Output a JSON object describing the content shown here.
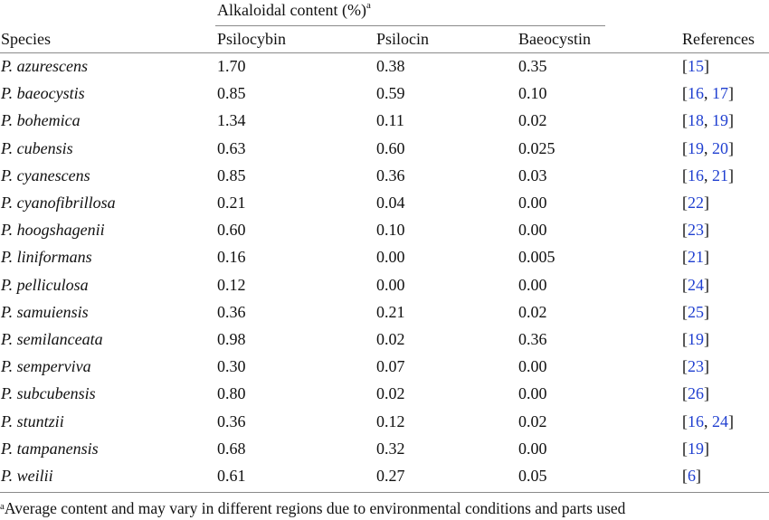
{
  "table": {
    "group_header": "Alkaloidal content (%)",
    "group_header_mark": "a",
    "columns": {
      "species": "Species",
      "psilocybin": "Psilocybin",
      "psilocin": "Psilocin",
      "baeocystin": "Baeocystin",
      "references": "References"
    },
    "rows": [
      {
        "species": "P. azurescens",
        "psilocybin": "1.70",
        "psilocin": "0.38",
        "baeocystin": "0.35",
        "refs": [
          "15"
        ]
      },
      {
        "species": "P. baeocystis",
        "psilocybin": "0.85",
        "psilocin": "0.59",
        "baeocystin": "0.10",
        "refs": [
          "16",
          "17"
        ]
      },
      {
        "species": "P. bohemica",
        "psilocybin": "1.34",
        "psilocin": "0.11",
        "baeocystin": "0.02",
        "refs": [
          "18",
          "19"
        ]
      },
      {
        "species": "P. cubensis",
        "psilocybin": "0.63",
        "psilocin": "0.60",
        "baeocystin": "0.025",
        "refs": [
          "19",
          "20"
        ]
      },
      {
        "species": "P. cyanescens",
        "psilocybin": "0.85",
        "psilocin": "0.36",
        "baeocystin": "0.03",
        "refs": [
          "16",
          "21"
        ]
      },
      {
        "species": "P. cyanofibrillosa",
        "psilocybin": "0.21",
        "psilocin": "0.04",
        "baeocystin": "0.00",
        "refs": [
          "22"
        ]
      },
      {
        "species": "P. hoogshagenii",
        "psilocybin": "0.60",
        "psilocin": "0.10",
        "baeocystin": "0.00",
        "refs": [
          "23"
        ]
      },
      {
        "species": "P. liniformans",
        "psilocybin": "0.16",
        "psilocin": "0.00",
        "baeocystin": "0.005",
        "refs": [
          "21"
        ]
      },
      {
        "species": "P. pelliculosa",
        "psilocybin": "0.12",
        "psilocin": "0.00",
        "baeocystin": "0.00",
        "refs": [
          "24"
        ]
      },
      {
        "species": "P. samuiensis",
        "psilocybin": "0.36",
        "psilocin": "0.21",
        "baeocystin": "0.02",
        "refs": [
          "25"
        ]
      },
      {
        "species": "P. semilanceata",
        "psilocybin": "0.98",
        "psilocin": "0.02",
        "baeocystin": "0.36",
        "refs": [
          "19"
        ]
      },
      {
        "species": "P. semperviva",
        "psilocybin": "0.30",
        "psilocin": "0.07",
        "baeocystin": "0.00",
        "refs": [
          "23"
        ]
      },
      {
        "species": "P. subcubensis",
        "psilocybin": "0.80",
        "psilocin": "0.02",
        "baeocystin": "0.00",
        "refs": [
          "26"
        ]
      },
      {
        "species": "P. stuntzii",
        "psilocybin": "0.36",
        "psilocin": "0.12",
        "baeocystin": "0.02",
        "refs": [
          "16",
          "24"
        ]
      },
      {
        "species": "P. tampanensis",
        "psilocybin": "0.68",
        "psilocin": "0.32",
        "baeocystin": "0.00",
        "refs": [
          "19"
        ]
      },
      {
        "species": "P. weilii",
        "psilocybin": "0.61",
        "psilocin": "0.27",
        "baeocystin": "0.05",
        "refs": [
          "6"
        ]
      }
    ],
    "footnote_mark": "a",
    "footnote": "Average content and may vary in different regions due to environmental conditions and parts used"
  },
  "colors": {
    "link": "#1f3fd0",
    "rule": "#8a8a8a",
    "text": "#111111"
  }
}
